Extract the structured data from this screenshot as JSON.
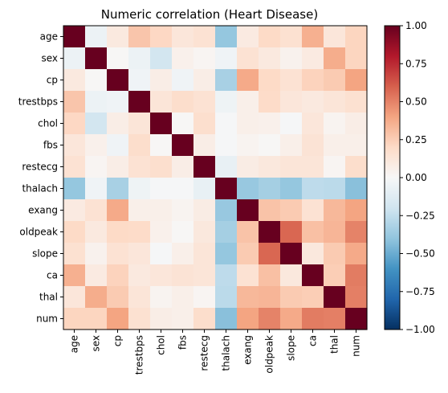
{
  "chart_data": {
    "type": "heatmap",
    "title": "Numeric correlation (Heart Disease)",
    "variables": [
      "age",
      "sex",
      "cp",
      "trestbps",
      "chol",
      "fbs",
      "restecg",
      "thalach",
      "exang",
      "oldpeak",
      "slope",
      "ca",
      "thal",
      "num"
    ],
    "matrix": [
      [
        1.0,
        -0.06,
        0.1,
        0.28,
        0.21,
        0.12,
        0.15,
        -0.39,
        0.09,
        0.2,
        0.16,
        0.36,
        0.12,
        0.22
      ],
      [
        -0.06,
        1.0,
        0.01,
        -0.06,
        -0.19,
        0.05,
        0.02,
        -0.04,
        0.15,
        0.1,
        0.04,
        0.09,
        0.37,
        0.22
      ],
      [
        0.1,
        0.01,
        1.0,
        -0.04,
        0.07,
        -0.04,
        0.07,
        -0.33,
        0.38,
        0.2,
        0.15,
        0.23,
        0.26,
        0.4
      ],
      [
        0.28,
        -0.06,
        -0.04,
        1.0,
        0.13,
        0.18,
        0.15,
        -0.05,
        0.06,
        0.19,
        0.12,
        0.1,
        0.13,
        0.16
      ],
      [
        0.21,
        -0.19,
        0.07,
        0.13,
        1.0,
        0.01,
        0.17,
        -0.01,
        0.06,
        0.05,
        -0.01,
        0.12,
        0.03,
        0.07
      ],
      [
        0.12,
        0.05,
        -0.04,
        0.18,
        0.01,
        1.0,
        0.07,
        -0.01,
        0.03,
        0.01,
        0.06,
        0.14,
        0.06,
        0.06
      ],
      [
        0.15,
        0.02,
        0.07,
        0.15,
        0.17,
        0.07,
        1.0,
        -0.08,
        0.08,
        0.11,
        0.13,
        0.13,
        0.02,
        0.18
      ],
      [
        -0.39,
        -0.04,
        -0.33,
        -0.05,
        -0.01,
        -0.01,
        -0.08,
        1.0,
        -0.38,
        -0.34,
        -0.39,
        -0.26,
        -0.27,
        -0.42
      ],
      [
        0.09,
        0.15,
        0.38,
        0.06,
        0.06,
        0.03,
        0.08,
        -0.38,
        1.0,
        0.29,
        0.26,
        0.15,
        0.33,
        0.4
      ],
      [
        0.2,
        0.1,
        0.2,
        0.19,
        0.05,
        0.01,
        0.11,
        -0.34,
        0.29,
        1.0,
        0.58,
        0.3,
        0.34,
        0.5
      ],
      [
        0.16,
        0.04,
        0.15,
        0.12,
        -0.01,
        0.06,
        0.13,
        -0.39,
        0.26,
        0.58,
        1.0,
        0.11,
        0.26,
        0.38
      ],
      [
        0.36,
        0.09,
        0.23,
        0.1,
        0.12,
        0.14,
        0.13,
        -0.26,
        0.15,
        0.3,
        0.11,
        1.0,
        0.25,
        0.52
      ],
      [
        0.12,
        0.37,
        0.26,
        0.13,
        0.03,
        0.06,
        0.02,
        -0.27,
        0.33,
        0.34,
        0.26,
        0.25,
        1.0,
        0.51
      ],
      [
        0.22,
        0.22,
        0.4,
        0.16,
        0.07,
        0.06,
        0.18,
        -0.42,
        0.4,
        0.5,
        0.38,
        0.52,
        0.51,
        1.0
      ]
    ],
    "colorbar": {
      "min": -1.0,
      "max": 1.0,
      "ticks": [
        -1.0,
        -0.75,
        -0.5,
        -0.25,
        0.0,
        0.25,
        0.5,
        0.75,
        1.0
      ],
      "tick_labels": [
        "−1.00",
        "−0.75",
        "−0.50",
        "−0.25",
        "0.00",
        "0.25",
        "0.50",
        "0.75",
        "1.00"
      ],
      "colormap": "RdBu_r"
    }
  }
}
